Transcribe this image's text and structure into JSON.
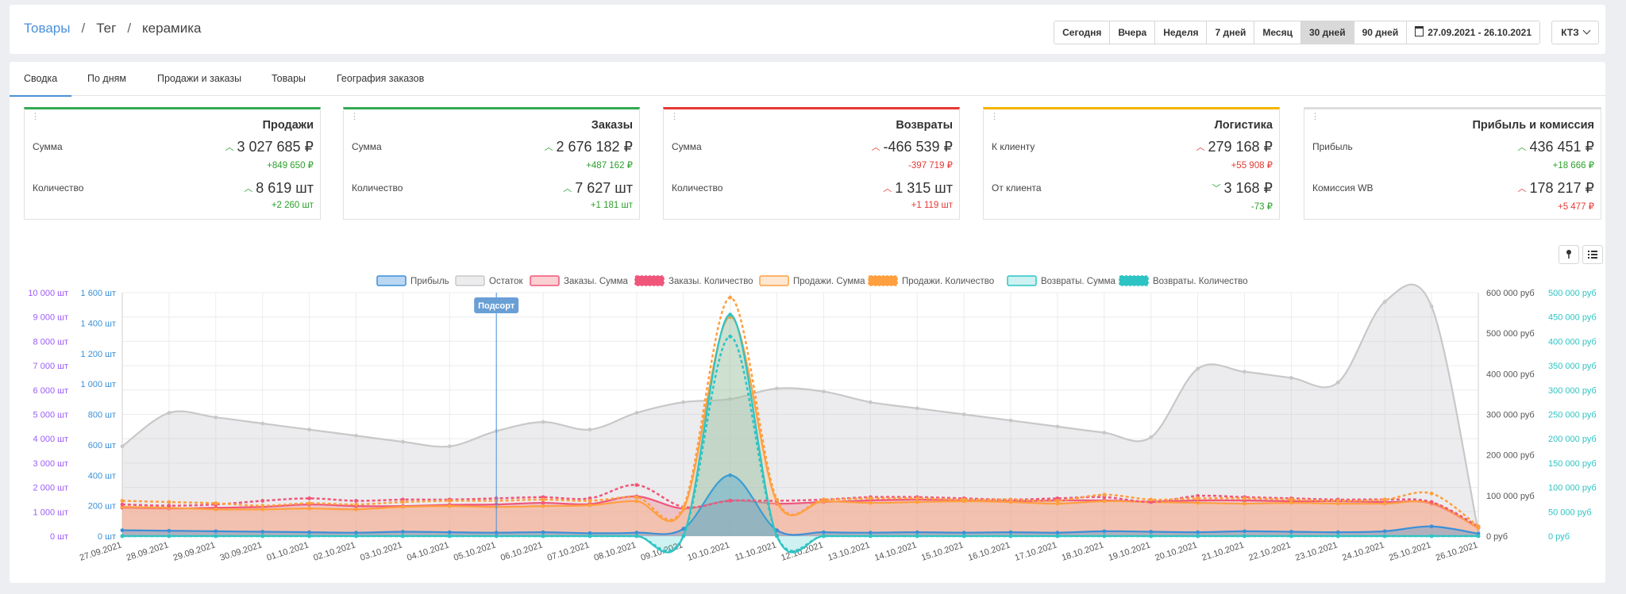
{
  "breadcrumb": {
    "root": "Товары",
    "tag": "Тег",
    "current": "керамика"
  },
  "periods": {
    "items": [
      {
        "label": "Сегодня",
        "active": false
      },
      {
        "label": "Вчера",
        "active": false
      },
      {
        "label": "Неделя",
        "active": false
      },
      {
        "label": "7 дней",
        "active": false
      },
      {
        "label": "Месяц",
        "active": false
      },
      {
        "label": "30 дней",
        "active": true
      },
      {
        "label": "90 дней",
        "active": false
      }
    ],
    "date_range": "27.09.2021 - 26.10.2021",
    "currency": "КТЗ"
  },
  "tabs": [
    "Сводка",
    "По дням",
    "Продажи и заказы",
    "Товары",
    "География заказов"
  ],
  "cards": [
    {
      "title": "Продажи",
      "color": "#34a853",
      "rows": [
        {
          "label": "Сумма",
          "value": "3 027 685 ₽",
          "delta": "+849 650 ₽",
          "trend": "up",
          "delta_color": "up"
        },
        {
          "label": "Количество",
          "value": "8 619 шт",
          "delta": "+2 260 шт",
          "trend": "up",
          "delta_color": "up"
        }
      ]
    },
    {
      "title": "Заказы",
      "color": "#34a853",
      "rows": [
        {
          "label": "Сумма",
          "value": "2 676 182 ₽",
          "delta": "+487 162 ₽",
          "trend": "up",
          "delta_color": "up"
        },
        {
          "label": "Количество",
          "value": "7 627 шт",
          "delta": "+1 181 шт",
          "trend": "up",
          "delta_color": "up"
        }
      ]
    },
    {
      "title": "Возвраты",
      "color": "#e53935",
      "rows": [
        {
          "label": "Сумма",
          "value": "-466 539 ₽",
          "delta": "-397 719 ₽",
          "trend": "up",
          "delta_color": "down"
        },
        {
          "label": "Количество",
          "value": "1 315 шт",
          "delta": "+1 119 шт",
          "trend": "up",
          "delta_color": "down"
        }
      ]
    },
    {
      "title": "Логистика",
      "color": "#f5b400",
      "rows": [
        {
          "label": "К клиенту",
          "value": "279 168 ₽",
          "delta": "+55 908 ₽",
          "trend": "up",
          "delta_color": "down"
        },
        {
          "label": "От клиента",
          "value": "3 168 ₽",
          "delta": "-73 ₽",
          "trend": "down",
          "delta_color": "up"
        }
      ]
    },
    {
      "title": "Прибыль и комиссия",
      "color": "#dddddd",
      "rows": [
        {
          "label": "Прибыль",
          "value": "436 451 ₽",
          "delta": "+18 666 ₽",
          "trend": "up",
          "delta_color": "up"
        },
        {
          "label": "Комиссия WB",
          "value": "178 217 ₽",
          "delta": "+5 477 ₽",
          "trend": "up",
          "delta_color": "down"
        }
      ]
    }
  ],
  "chart_data": {
    "type": "line",
    "x": [
      "27.09.2021",
      "28.09.2021",
      "29.09.2021",
      "30.09.2021",
      "01.10.2021",
      "02.10.2021",
      "03.10.2021",
      "04.10.2021",
      "05.10.2021",
      "06.10.2021",
      "07.10.2021",
      "08.10.2021",
      "09.10.2021",
      "10.10.2021",
      "11.10.2021",
      "12.10.2021",
      "13.10.2021",
      "14.10.2021",
      "15.10.2021",
      "16.10.2021",
      "17.10.2021",
      "18.10.2021",
      "19.10.2021",
      "20.10.2021",
      "21.10.2021",
      "22.10.2021",
      "23.10.2021",
      "24.10.2021",
      "25.10.2021",
      "26.10.2021"
    ],
    "annotation": {
      "label": "Подсорт",
      "x": "05.10.2021",
      "color": "#4a90d9"
    },
    "axes": {
      "left_outer": {
        "ticks": [
          "0 шт",
          "1 000 шт",
          "2 000 шт",
          "3 000 шт",
          "4 000 шт",
          "5 000 шт",
          "6 000 шт",
          "7 000 шт",
          "8 000 шт",
          "9 000 шт",
          "10 000 шт"
        ],
        "range": [
          0,
          10000
        ],
        "color": "#9c5cf6"
      },
      "left_inner": {
        "ticks": [
          "0 шт",
          "200 шт",
          "400 шт",
          "600 шт",
          "800 шт",
          "1 000 шт",
          "1 200 шт",
          "1 400 шт",
          "1 600 шт"
        ],
        "range": [
          0,
          1600
        ],
        "color": "#3a8fd8"
      },
      "right_inner": {
        "ticks": [
          "0 руб",
          "100 000 руб",
          "200 000 руб",
          "300 000 руб",
          "400 000 руб",
          "500 000 руб",
          "600 000 руб"
        ],
        "range": [
          0,
          600000
        ],
        "color": "#555555"
      },
      "right_outer": {
        "ticks": [
          "0 руб",
          "50 000 руб",
          "100 000 руб",
          "150 000 руб",
          "200 000 руб",
          "250 000 руб",
          "300 000 руб",
          "350 000 руб",
          "400 000 руб",
          "450 000 руб",
          "500 000 руб"
        ],
        "range": [
          0,
          500000
        ],
        "color": "#2ec4c4"
      }
    },
    "grid": true,
    "legend_position": "top",
    "series": [
      {
        "name": "Прибыль",
        "axis": "right_outer",
        "color": "#3a8fd8",
        "fill": "rgba(58,143,216,0.35)",
        "dashed": false,
        "values": [
          12000,
          11000,
          10000,
          9000,
          8000,
          7000,
          9000,
          8000,
          7000,
          8000,
          6000,
          7000,
          15000,
          125000,
          12000,
          8000,
          7000,
          8000,
          7000,
          8000,
          7000,
          10000,
          9000,
          8000,
          10000,
          9000,
          8000,
          10000,
          20000,
          5000
        ]
      },
      {
        "name": "Остаток",
        "axis": "left_inner",
        "color": "#c8c8c8",
        "fill": "rgba(200,200,205,0.35)",
        "dashed": false,
        "values": [
          590,
          810,
          780,
          740,
          700,
          660,
          620,
          590,
          690,
          750,
          700,
          810,
          880,
          900,
          970,
          950,
          880,
          840,
          800,
          760,
          720,
          680,
          650,
          1100,
          1080,
          1040,
          1010,
          1540,
          1510,
          30
        ]
      },
      {
        "name": "Заказы. Сумма",
        "axis": "right_inner",
        "color": "#f0567a",
        "fill": "rgba(240,120,130,0.35)",
        "dashed": false,
        "values": [
          70000,
          68000,
          70000,
          72000,
          78000,
          74000,
          74000,
          77000,
          78000,
          82000,
          79000,
          98000,
          68000,
          88000,
          80000,
          84000,
          88000,
          90000,
          88000,
          86000,
          88000,
          88000,
          85000,
          88000,
          88000,
          86000,
          86000,
          84000,
          80000,
          20000
        ]
      },
      {
        "name": "Заказы. Количество",
        "axis": "left_outer",
        "color": "#f0567a",
        "fill": "none",
        "dashed": true,
        "values": [
          1300,
          1250,
          1300,
          1450,
          1550,
          1450,
          1500,
          1500,
          1550,
          1600,
          1550,
          2100,
          1200,
          1450,
          1450,
          1500,
          1600,
          1600,
          1550,
          1500,
          1550,
          1600,
          1400,
          1650,
          1600,
          1550,
          1500,
          1500,
          1400,
          400
        ]
      },
      {
        "name": "Продажи. Сумма",
        "axis": "right_inner",
        "color": "#ff9f40",
        "fill": "rgba(255,190,130,0.35)",
        "dashed": false,
        "values": [
          72000,
          70000,
          66000,
          66000,
          68000,
          66000,
          72000,
          74000,
          72000,
          74000,
          76000,
          86000,
          66000,
          540000,
          84000,
          86000,
          82000,
          84000,
          86000,
          84000,
          80000,
          86000,
          84000,
          82000,
          80000,
          82000,
          80000,
          80000,
          82000,
          20000
        ]
      },
      {
        "name": "Продажи. Количество",
        "axis": "left_outer",
        "color": "#ff9f40",
        "fill": "none",
        "dashed": true,
        "values": [
          1450,
          1400,
          1350,
          1250,
          1350,
          1300,
          1400,
          1450,
          1450,
          1500,
          1450,
          1600,
          1200,
          9800,
          1500,
          1500,
          1550,
          1550,
          1500,
          1500,
          1450,
          1700,
          1500,
          1550,
          1550,
          1500,
          1450,
          1500,
          1750,
          400
        ]
      },
      {
        "name": "Возвраты. Сумма",
        "axis": "right_outer",
        "color": "#2ec4c4",
        "fill": "rgba(60,200,200,0.25)",
        "dashed": false,
        "values": [
          0,
          0,
          0,
          0,
          0,
          0,
          0,
          0,
          0,
          0,
          0,
          0,
          0,
          455000,
          0,
          0,
          0,
          0,
          0,
          0,
          0,
          0,
          0,
          0,
          0,
          0,
          0,
          0,
          0,
          0
        ]
      },
      {
        "name": "Возвраты. Количество",
        "axis": "left_outer",
        "color": "#2ec4c4",
        "fill": "none",
        "dashed": true,
        "values": [
          0,
          0,
          0,
          0,
          0,
          0,
          0,
          0,
          0,
          0,
          0,
          0,
          0,
          8200,
          0,
          0,
          0,
          0,
          0,
          0,
          0,
          0,
          0,
          0,
          0,
          0,
          0,
          0,
          0,
          0
        ]
      }
    ]
  }
}
